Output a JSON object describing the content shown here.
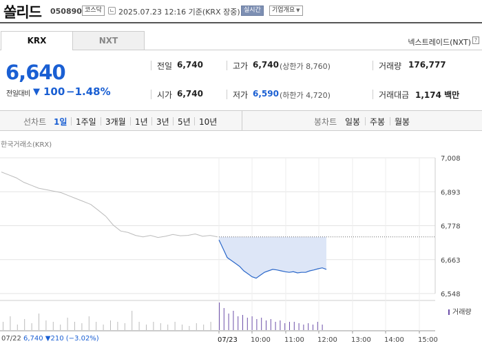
{
  "header": {
    "name": "쏠리드",
    "code": "050890",
    "market": "코스닥",
    "timestamp": "2025.07.23 12:16 기준(KRX 장중)",
    "realtime": "실시간",
    "company": "기업개요"
  },
  "tabs": [
    "KRX",
    "NXT"
  ],
  "nextrade": "넥스트레이드(NXT)",
  "help": "?",
  "price": {
    "current": "6,640",
    "change_label": "전일대비",
    "change_arrow": "▼",
    "change_value": "100",
    "change_rate": "−1.48%"
  },
  "stats": {
    "prev_label": "전일",
    "prev_value": "6,740",
    "high_label": "고가",
    "high_value": "6,740",
    "upper_limit": "(상한가 8,760)",
    "volume_label": "거래량",
    "volume_value": "176,777",
    "open_label": "시가",
    "open_value": "6,740",
    "low_label": "저가",
    "low_value": "6,590",
    "lower_limit": "(하한가 4,720)",
    "amount_label": "거래대금",
    "amount_value": "1,174 백만"
  },
  "ranges": {
    "line_title": "선차트",
    "line_items": [
      "1일",
      "1주일",
      "3개월",
      "1년",
      "3년",
      "5년",
      "10년"
    ],
    "active": "1일",
    "candle_title": "봉차트",
    "candle_items": [
      "일봉",
      "주봉",
      "월봉"
    ]
  },
  "chart": {
    "exchange_label": "한국거래소(KRX)",
    "volume_legend": "거래량",
    "foot_date": "07/22",
    "foot_summary": "6,740 ▼210 (−3.02%)"
  },
  "chart_data": {
    "type": "line",
    "title": "",
    "y_ticks": [
      "7,008",
      "6,893",
      "6,778",
      "6,663",
      "6,548"
    ],
    "ylim": [
      6548,
      7008
    ],
    "x_ticks": [
      "07/23",
      "10:00",
      "11:00",
      "12:00",
      "13:00",
      "14:00",
      "15:00"
    ],
    "previous_close": 6740,
    "series": [
      {
        "period": "07/22",
        "values": [
          6960,
          6950,
          6940,
          6925,
          6915,
          6905,
          6900,
          6895,
          6890,
          6880,
          6870,
          6860,
          6850,
          6830,
          6810,
          6780,
          6760,
          6755,
          6745,
          6740,
          6745,
          6738,
          6742,
          6748,
          6744,
          6745,
          6750,
          6742,
          6745,
          6740
        ]
      },
      {
        "period": "07/23",
        "values": [
          6730,
          6700,
          6670,
          6660,
          6650,
          6640,
          6625,
          6615,
          6605,
          6600,
          6610,
          6620,
          6625,
          6630,
          6628,
          6625,
          6622,
          6620,
          6622,
          6618,
          6620,
          6620,
          6625,
          6628,
          6632,
          6635,
          6630
        ]
      }
    ],
    "volume": {
      "legend": "거래량",
      "levels_0_1": [
        0.3,
        0.5,
        0.2,
        0.4,
        0.25,
        0.6,
        0.35,
        0.3,
        0.2,
        0.45,
        0.3,
        0.25,
        0.5,
        0.3,
        0.2,
        0.35,
        0.3,
        0.25,
        0.7,
        0.3,
        0.2,
        0.3,
        0.25,
        0.2,
        0.3,
        0.2,
        0.15,
        0.25,
        0.2,
        0.3,
        1.0,
        0.8,
        0.6,
        0.7,
        0.5,
        0.55,
        0.45,
        0.5,
        0.4,
        0.45,
        0.35,
        0.4,
        0.3,
        0.35,
        0.25,
        0.3,
        0.3,
        0.25,
        0.2,
        0.25,
        0.2,
        0.3,
        0.2
      ]
    }
  }
}
